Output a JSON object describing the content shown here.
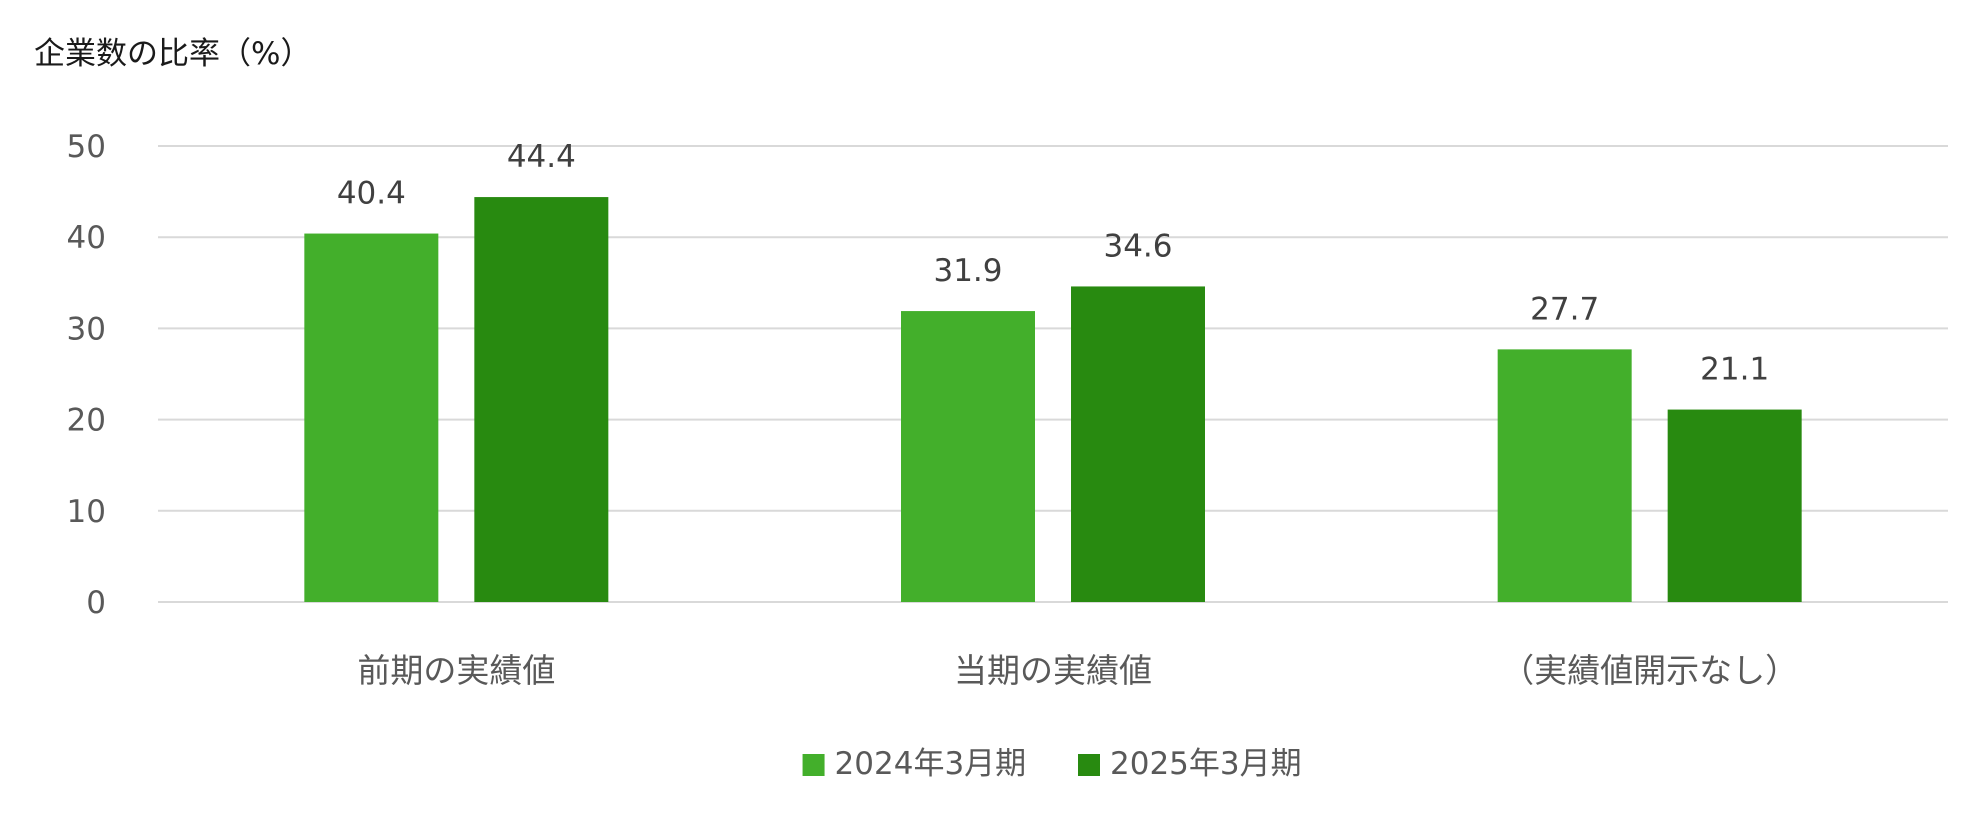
{
  "chart_data": {
    "type": "bar",
    "title": "",
    "ylabel": "企業数の比率（%）",
    "xlabel": "",
    "categories": [
      "前期の実績値",
      "当期の実績値",
      "（実績値開示なし）"
    ],
    "series": [
      {
        "name": "2024年3月期",
        "values": [
          40.4,
          31.9,
          27.7
        ],
        "color": "#43AF2B"
      },
      {
        "name": "2025年3月期",
        "values": [
          44.4,
          34.6,
          21.1
        ],
        "color": "#288A10"
      }
    ],
    "ylim": [
      0,
      50
    ],
    "yticks": [
      0,
      10,
      20,
      30,
      40,
      50
    ],
    "grid": true,
    "legend_position": "bottom",
    "data_labels": true,
    "label_decimals": 1
  }
}
